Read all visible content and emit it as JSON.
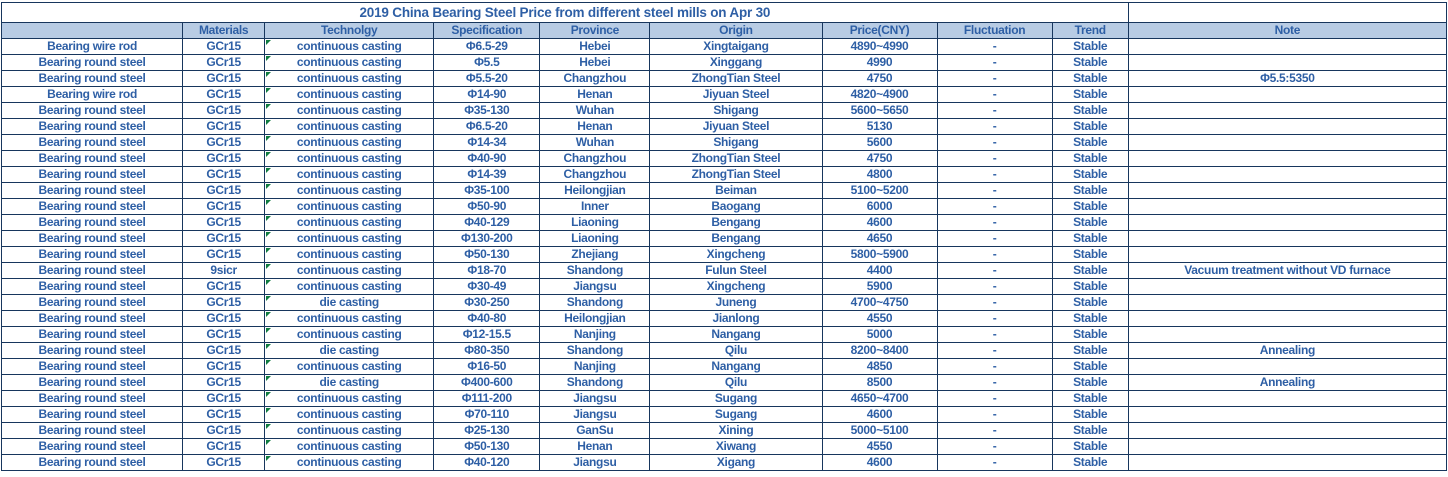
{
  "title": "2019 China Bearing Steel Price from different steel mills on Apr 30",
  "colors": {
    "header_bg": "#b8cce4",
    "text_blue": "#2e5fa5",
    "border": "#17365d",
    "error_indicator_green": "#107c41"
  },
  "icons": {
    "technology_cell_indicator": "green-error-triangle-icon"
  },
  "table": {
    "columns": [
      "",
      "Materials",
      "Technolgy",
      "Specification",
      "Province",
      "Origin",
      "Price(CNY)",
      "Fluctuation",
      "Trend",
      "Note"
    ],
    "rows": [
      [
        "Bearing wire rod",
        "GCr15",
        "continuous casting",
        "Φ6.5-29",
        "Hebei",
        "Xingtaigang",
        "4890~4990",
        "-",
        "Stable",
        ""
      ],
      [
        "Bearing round steel",
        "GCr15",
        "continuous casting",
        "Φ5.5",
        "Hebei",
        "Xinggang",
        "4990",
        "-",
        "Stable",
        ""
      ],
      [
        "Bearing round steel",
        "GCr15",
        "continuous casting",
        "Φ5.5-20",
        "Changzhou",
        "ZhongTian Steel",
        "4750",
        "-",
        "Stable",
        "Φ5.5:5350"
      ],
      [
        "Bearing wire rod",
        "GCr15",
        "continuous casting",
        "Φ14-90",
        "Henan",
        "Jiyuan Steel",
        "4820~4900",
        "-",
        "Stable",
        ""
      ],
      [
        "Bearing round steel",
        "GCr15",
        "continuous casting",
        "Φ35-130",
        "Wuhan",
        "Shigang",
        "5600~5650",
        "-",
        "Stable",
        ""
      ],
      [
        "Bearing round steel",
        "GCr15",
        "continuous casting",
        "Φ6.5-20",
        "Henan",
        "Jiyuan Steel",
        "5130",
        "-",
        "Stable",
        ""
      ],
      [
        "Bearing round steel",
        "GCr15",
        "continuous casting",
        "Φ14-34",
        "Wuhan",
        "Shigang",
        "5600",
        "-",
        "Stable",
        ""
      ],
      [
        "Bearing round steel",
        "GCr15",
        "continuous casting",
        "Φ40-90",
        "Changzhou",
        "ZhongTian Steel",
        "4750",
        "-",
        "Stable",
        ""
      ],
      [
        "Bearing round steel",
        "GCr15",
        "continuous casting",
        "Φ14-39",
        "Changzhou",
        "ZhongTian Steel",
        "4800",
        "-",
        "Stable",
        ""
      ],
      [
        "Bearing round steel",
        "GCr15",
        "continuous casting",
        "Φ35-100",
        "Heilongjian",
        "Beiman",
        "5100~5200",
        "-",
        "Stable",
        ""
      ],
      [
        "Bearing round steel",
        "GCr15",
        "continuous casting",
        "Φ50-90",
        "Inner",
        "Baogang",
        "6000",
        "-",
        "Stable",
        ""
      ],
      [
        "Bearing round steel",
        "GCr15",
        "continuous casting",
        "Φ40-129",
        "Liaoning",
        "Bengang",
        "4600",
        "-",
        "Stable",
        ""
      ],
      [
        "Bearing round steel",
        "GCr15",
        "continuous casting",
        "Φ130-200",
        "Liaoning",
        "Bengang",
        "4650",
        "-",
        "Stable",
        ""
      ],
      [
        "Bearing round steel",
        "GCr15",
        "continuous casting",
        "Φ50-130",
        "Zhejiang",
        "Xingcheng",
        "5800~5900",
        "-",
        "Stable",
        ""
      ],
      [
        "Bearing round steel",
        "9sicr",
        "continuous casting",
        "Φ18-70",
        "Shandong",
        "Fulun Steel",
        "4400",
        "-",
        "Stable",
        "Vacuum treatment without VD furnace"
      ],
      [
        "Bearing round steel",
        "GCr15",
        "continuous casting",
        "Φ30-49",
        "Jiangsu",
        "Xingcheng",
        "5900",
        "-",
        "Stable",
        ""
      ],
      [
        "Bearing round steel",
        "GCr15",
        "die casting",
        "Φ30-250",
        "Shandong",
        "Juneng",
        "4700~4750",
        "-",
        "Stable",
        ""
      ],
      [
        "Bearing round steel",
        "GCr15",
        "continuous casting",
        "Φ40-80",
        "Heilongjian",
        "Jianlong",
        "4550",
        "-",
        "Stable",
        ""
      ],
      [
        "Bearing round steel",
        "GCr15",
        "continuous casting",
        "Φ12-15.5",
        "Nanjing",
        "Nangang",
        "5000",
        "-",
        "Stable",
        ""
      ],
      [
        "Bearing round steel",
        "GCr15",
        "die casting",
        "Φ80-350",
        "Shandong",
        "Qilu",
        "8200~8400",
        "-",
        "Stable",
        "Annealing"
      ],
      [
        "Bearing round steel",
        "GCr15",
        "continuous casting",
        "Φ16-50",
        "Nanjing",
        "Nangang",
        "4850",
        "-",
        "Stable",
        ""
      ],
      [
        "Bearing round steel",
        "GCr15",
        "die casting",
        "Φ400-600",
        "Shandong",
        "Qilu",
        "8500",
        "-",
        "Stable",
        "Annealing"
      ],
      [
        "Bearing round steel",
        "GCr15",
        "continuous casting",
        "Φ111-200",
        "Jiangsu",
        "Sugang",
        "4650~4700",
        "-",
        "Stable",
        ""
      ],
      [
        "Bearing round steel",
        "GCr15",
        "continuous casting",
        "Φ70-110",
        "Jiangsu",
        "Sugang",
        "4600",
        "-",
        "Stable",
        ""
      ],
      [
        "Bearing round steel",
        "GCr15",
        "continuous casting",
        "Φ25-130",
        "GanSu",
        "Xining",
        "5000~5100",
        "-",
        "Stable",
        ""
      ],
      [
        "Bearing round steel",
        "GCr15",
        "continuous casting",
        "Φ50-130",
        "Henan",
        "Xiwang",
        "4550",
        "-",
        "Stable",
        ""
      ],
      [
        "Bearing round steel",
        "GCr15",
        "continuous casting",
        "Φ40-120",
        "Jiangsu",
        "Xigang",
        "4600",
        "-",
        "Stable",
        ""
      ]
    ]
  }
}
